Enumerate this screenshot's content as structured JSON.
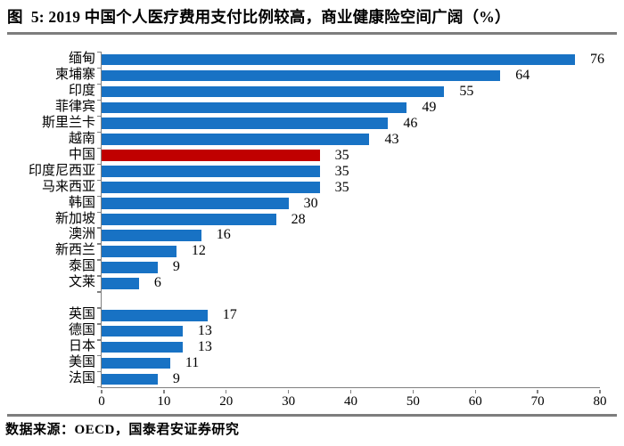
{
  "figure": {
    "title": "图  5: 2019 中国个人医疗费用支付比例较高，商业健康险空间广阔（%）",
    "source": "数据来源：OECD，国泰君安证券研究"
  },
  "colors": {
    "bar": "#1872C4",
    "highlight": "#C00000",
    "axis": "#808080",
    "rule": "#7D7D7D",
    "text": "#000000"
  },
  "chart_data": {
    "type": "bar",
    "orientation": "horizontal",
    "title": "图 5: 2019 中国个人医疗费用支付比例较高，商业健康险空间广阔（%）",
    "source": "数据来源：OECD，国泰君安证券研究",
    "categories": [
      "缅甸",
      "柬埔寨",
      "印度",
      "菲律宾",
      "斯里兰卡",
      "越南",
      "中国",
      "印度尼西亚",
      "马来西亚",
      "韩国",
      "新加坡",
      "澳洲",
      "新西兰",
      "泰国",
      "文莱",
      "",
      "英国",
      "德国",
      "日本",
      "美国",
      "法国"
    ],
    "values": [
      76,
      64,
      55,
      49,
      46,
      43,
      35,
      35,
      35,
      30,
      28,
      16,
      12,
      9,
      6,
      null,
      17,
      13,
      13,
      11,
      9
    ],
    "highlight_index": 6,
    "highlight_category": "中国",
    "xlabel": "",
    "ylabel": "",
    "xlim": [
      0,
      80
    ],
    "xticks": [
      0,
      10,
      20,
      30,
      40,
      50,
      60,
      70,
      80
    ],
    "grid": false,
    "legend": false,
    "value_labels": true
  }
}
